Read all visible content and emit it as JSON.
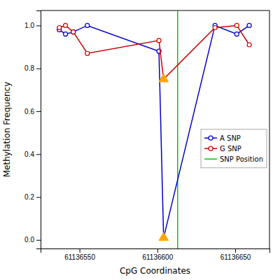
{
  "chart_data": {
    "type": "line",
    "xlabel": "CpG Coordinates",
    "ylabel": "Methylation Frequency",
    "x": [
      61136537,
      61136541,
      61136546,
      61136555,
      61136601,
      61136604,
      61136637,
      61136651,
      61136659
    ],
    "series": [
      {
        "name": "A SNP",
        "color": "#0000CC",
        "marker": "circle",
        "values": [
          0.98,
          0.96,
          0.97,
          1.0,
          0.88,
          0.01,
          1.0,
          0.96,
          1.0
        ]
      },
      {
        "name": "G SNP",
        "color": "#CC0000",
        "marker": "circle",
        "values": [
          0.99,
          1.0,
          0.97,
          0.87,
          0.93,
          0.75,
          0.99,
          1.0,
          0.91
        ]
      }
    ],
    "snp_line": {
      "name": "SNP Position",
      "x": 61136613,
      "color": "#00CC00"
    },
    "markers": {
      "x": [
        61136604,
        61136604
      ],
      "values": [
        0.01,
        0.75
      ],
      "color": "#FFA500",
      "marker": "triangle"
    },
    "xlim": [
      61136525,
      61136672
    ],
    "ylim": [
      -0.04,
      1.07
    ],
    "xticks": [
      61136550,
      61136600,
      61136650
    ],
    "yticks": [
      {
        "value": 0.0,
        "label": "0.0"
      },
      0.2,
      0.4,
      0.6,
      0.8,
      {
        "value": 1.0,
        "label": "1.0"
      }
    ],
    "grid": false,
    "legend": "right"
  }
}
